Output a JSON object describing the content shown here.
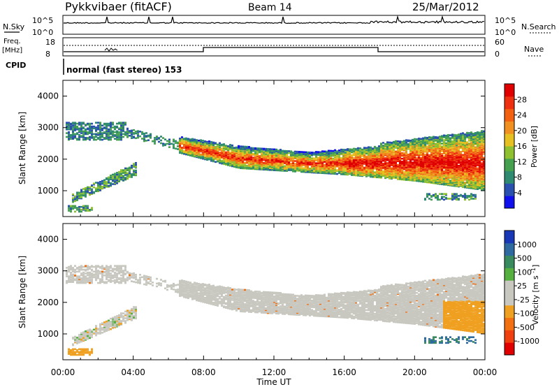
{
  "header": {
    "station": "Pykkvibaer (fitACF)",
    "beam": "Beam 14",
    "date": "25/Mar/2012"
  },
  "strips": {
    "nsky": {
      "label": "N.Sky",
      "ticks": [
        "10^5",
        "10^0"
      ],
      "right_label": "N.Search",
      "right_ticks": [
        "10^5",
        "10^0"
      ]
    },
    "freq": {
      "label": "Freq.",
      "unit": "[MHz]",
      "ticks": [
        "18",
        "8"
      ],
      "right_label": "Nave",
      "right_ticks": [
        "60",
        "0"
      ]
    },
    "cpid": {
      "label": "CPID",
      "text": "normal (fast stereo) 153"
    }
  },
  "xaxis": {
    "label": "Time UT",
    "ticks": [
      "00:00",
      "04:00",
      "08:00",
      "12:00",
      "16:00",
      "20:00",
      "00:00"
    ]
  },
  "chart_data": [
    {
      "type": "heatmap",
      "name": "power",
      "xlabel": "Time UT",
      "ylabel": "Slant Range [km]",
      "ylim": [
        180,
        4500
      ],
      "xlim_hours": [
        0,
        24
      ],
      "y_ticks": [
        1000,
        2000,
        3000,
        4000
      ],
      "colorbar": {
        "label": "Power [dB]",
        "ticks": [
          "4",
          "8",
          "12",
          "16",
          "20",
          "24",
          "28"
        ],
        "colors": [
          "#1010ee",
          "#2a50b0",
          "#2e8a70",
          "#45a050",
          "#8fc030",
          "#e6c020",
          "#f09020",
          "#f26010",
          "#ee3010",
          "#e00000"
        ]
      }
    },
    {
      "type": "heatmap",
      "name": "velocity",
      "xlabel": "Time UT",
      "ylabel": "Slant Range [km]",
      "ylim": [
        180,
        4500
      ],
      "xlim_hours": [
        0,
        24
      ],
      "y_ticks": [
        1000,
        2000,
        3000,
        4000
      ],
      "colorbar": {
        "label": "Velocity [m s^-1]",
        "ticks": [
          "1000",
          "500",
          "100",
          "25",
          "-25",
          "-100",
          "-500",
          "-1000"
        ],
        "colors": [
          "#1838b8",
          "#2e6aa0",
          "#3a8a60",
          "#56b040",
          "#c8c8c0",
          "#c8c8c0",
          "#f0a020",
          "#f27010",
          "#f04010",
          "#e00000"
        ]
      }
    }
  ]
}
